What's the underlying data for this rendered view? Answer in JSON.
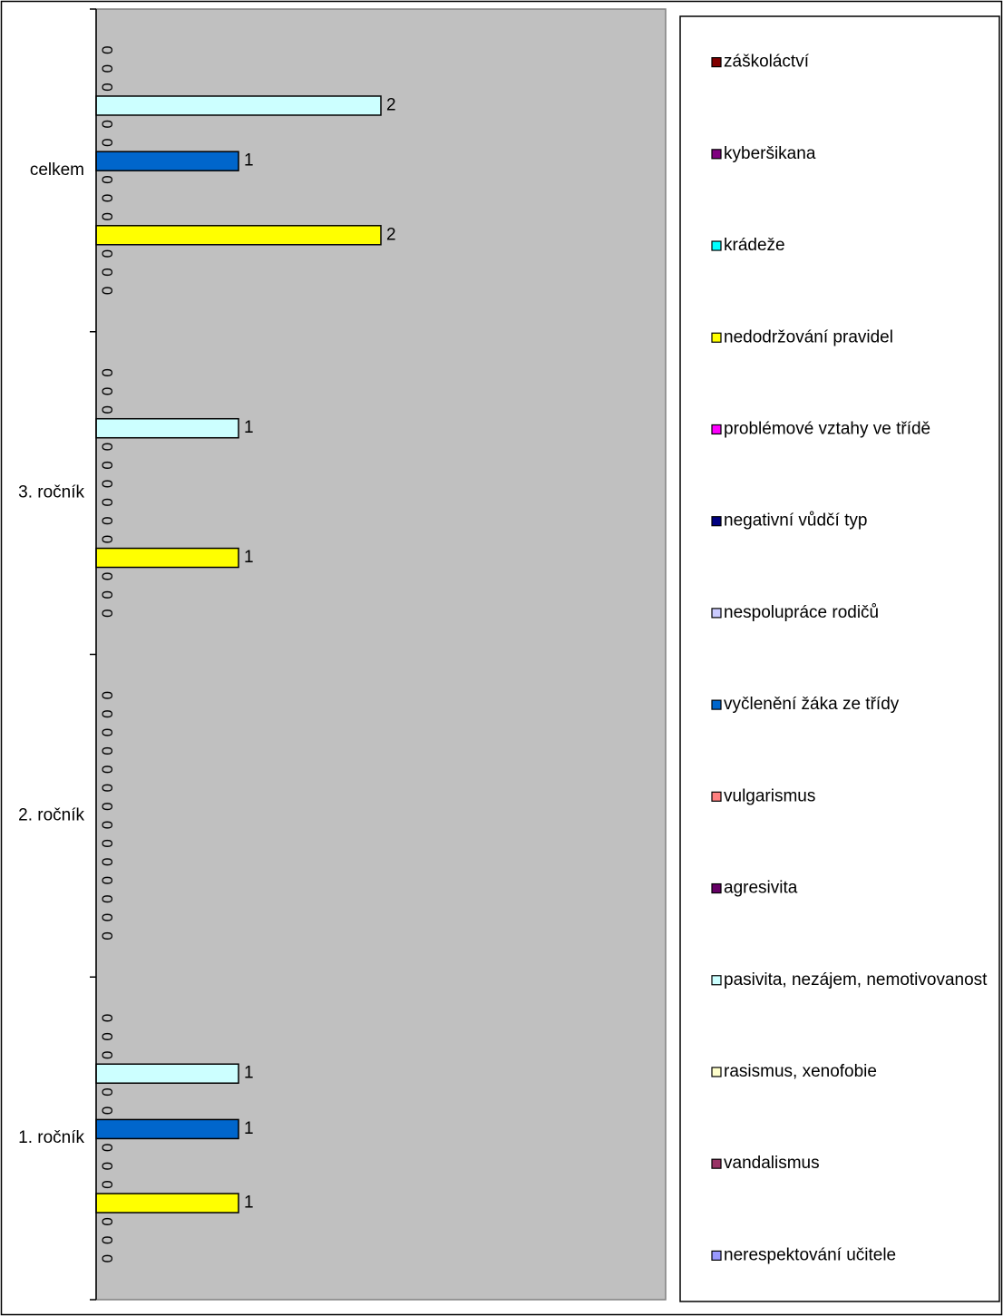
{
  "chart_data": {
    "type": "bar",
    "orientation": "horizontal",
    "categories": [
      "celkem",
      "3. ročník",
      "2. ročník",
      "1. ročník"
    ],
    "series": [
      {
        "name": "záškoláctví",
        "color": "#800000",
        "values": [
          0,
          0,
          0,
          0
        ]
      },
      {
        "name": "kyberšikana",
        "color": "#800080",
        "values": [
          0,
          0,
          0,
          0
        ]
      },
      {
        "name": "krádeže",
        "color": "#00FFFF",
        "values": [
          0,
          0,
          0,
          0
        ]
      },
      {
        "name": "nedodržování pravidel",
        "color": "#FFFF00",
        "values": [
          2,
          1,
          0,
          1
        ]
      },
      {
        "name": "problémové vztahy ve třídě",
        "color": "#FF00FF",
        "values": [
          0,
          0,
          0,
          0
        ]
      },
      {
        "name": "negativní vůdčí typ",
        "color": "#000080",
        "values": [
          0,
          0,
          0,
          0
        ]
      },
      {
        "name": "nespolupráce rodičů",
        "color": "#CCCCFF",
        "values": [
          0,
          0,
          0,
          0
        ]
      },
      {
        "name": "vyčlenění žáka ze třídy",
        "color": "#0066CC",
        "values": [
          1,
          0,
          0,
          1
        ]
      },
      {
        "name": "vulgarismus",
        "color": "#FF8080",
        "values": [
          0,
          0,
          0,
          0
        ]
      },
      {
        "name": "agresivita",
        "color": "#660066",
        "values": [
          0,
          0,
          0,
          0
        ]
      },
      {
        "name": "pasivita, nezájem, nemotivovanost",
        "color": "#CCFFFF",
        "values": [
          2,
          1,
          0,
          1
        ]
      },
      {
        "name": "rasismus, xenofobie",
        "color": "#FFFFCC",
        "values": [
          0,
          0,
          0,
          0
        ]
      },
      {
        "name": "vandalismus",
        "color": "#993366",
        "values": [
          0,
          0,
          0,
          0
        ]
      },
      {
        "name": "nerespektování učitele",
        "color": "#9999FF",
        "values": [
          0,
          0,
          0,
          0
        ]
      }
    ],
    "xlim": [
      0,
      4
    ],
    "grid": false,
    "legend_position": "right",
    "plot_background": "#C0C0C0",
    "data_labels": true
  }
}
